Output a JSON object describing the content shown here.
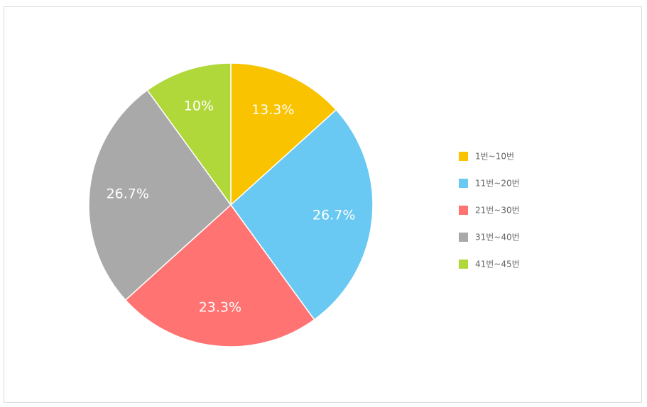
{
  "chart_data": {
    "type": "pie",
    "categories": [
      "1번~10번",
      "11번~20번",
      "21번~30번",
      "31번~40번",
      "41번~45번"
    ],
    "values": [
      13.3,
      26.7,
      23.3,
      26.7,
      10
    ],
    "value_labels": [
      "13.3%",
      "26.7%",
      "23.3%",
      "26.7%",
      "10%"
    ],
    "colors": [
      "#f9c300",
      "#6ac9f2",
      "#ff7373",
      "#a9a9a9",
      "#b0d83b"
    ],
    "legend_position": "right",
    "start_angle": "12 o'clock",
    "direction": "clockwise"
  }
}
